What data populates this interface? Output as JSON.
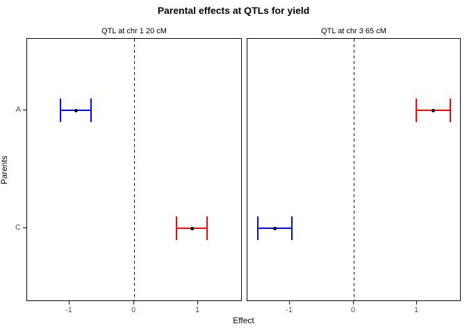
{
  "title": "Parental effects at QTLs for yield",
  "chart_data": {
    "type": "errorbar",
    "title": "Parental effects at QTLs for yield",
    "xlabel": "Effect",
    "ylabel": "Parents",
    "categories": [
      "A",
      "C"
    ],
    "xlim": [
      -1.66,
      1.66
    ],
    "xticks": [
      -1,
      0,
      1
    ],
    "zero_line": {
      "x": 0,
      "style": "dashed",
      "color": "#000000"
    },
    "colors": {
      "blue_series": "#0000ff",
      "red_series": "#ff0000",
      "point": "#000000",
      "axis_text": "#4d4d4d",
      "panel_border": "#000000"
    },
    "legend": "none",
    "grid": "off",
    "panels": [
      {
        "label": "QTL at chr 1 20 cM",
        "points": [
          {
            "parent": "A",
            "estimate": -0.9,
            "lo": -1.14,
            "hi": -0.66,
            "color": "#0000ff"
          },
          {
            "parent": "C",
            "estimate": 0.9,
            "lo": 0.66,
            "hi": 1.14,
            "color": "#ff0000"
          }
        ]
      },
      {
        "label": "QTL at chr 3 65 cM",
        "points": [
          {
            "parent": "A",
            "estimate": 1.25,
            "lo": 0.98,
            "hi": 1.52,
            "color": "#ff0000"
          },
          {
            "parent": "C",
            "estimate": -1.24,
            "lo": -1.5,
            "hi": -0.96,
            "color": "#0000ff"
          }
        ]
      }
    ]
  }
}
